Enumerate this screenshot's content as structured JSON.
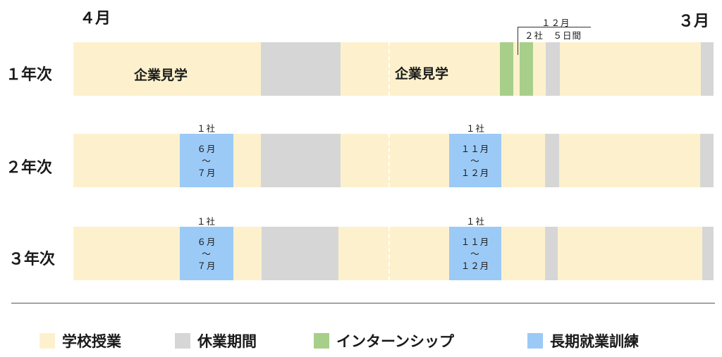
{
  "months": {
    "start": "４月",
    "end": "３月"
  },
  "years": [
    "１年次",
    "２年次",
    "３年次"
  ],
  "year1": {
    "visit_label_1": "企業見学",
    "visit_label_2": "企業見学",
    "internship_note_month": "１２月",
    "internship_note_detail": "２社　５日間"
  },
  "year2": {
    "training_1": {
      "company": "１社",
      "start": "６月",
      "tilde": "～",
      "end": "７月"
    },
    "training_2": {
      "company": "１社",
      "start": "１１月",
      "tilde": "～",
      "end": "１２月"
    }
  },
  "year3": {
    "training_1": {
      "company": "１社",
      "start": "６月",
      "tilde": "～",
      "end": "７月"
    },
    "training_2": {
      "company": "１社",
      "start": "１１月",
      "tilde": "～",
      "end": "１２月"
    }
  },
  "legend": [
    {
      "label": "学校授業",
      "color": "#fdf1cd"
    },
    {
      "label": "休業期間",
      "color": "#d6d6d6"
    },
    {
      "label": "インターンシップ",
      "color": "#a7cf8a"
    },
    {
      "label": "長期就業訓練",
      "color": "#9ccaf6"
    }
  ]
}
